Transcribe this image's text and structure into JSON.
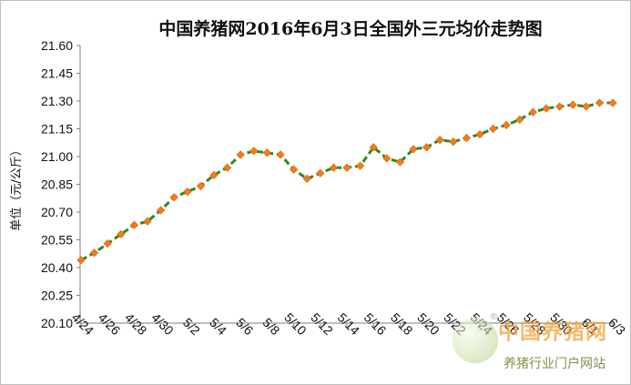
{
  "chart_data": {
    "type": "line",
    "title": "中国养猪网2016年6月3日全国外三元均价走势图",
    "ylabel": "单位（元/公斤）",
    "xlabel": "",
    "ylim": [
      20.1,
      21.6
    ],
    "yticks": [
      "20.10",
      "20.25",
      "20.40",
      "20.55",
      "20.70",
      "20.85",
      "21.00",
      "21.15",
      "21.30",
      "21.45",
      "21.60"
    ],
    "xticks": [
      "4/24",
      "4/26",
      "4/28",
      "4/30",
      "5/2",
      "5/4",
      "5/6",
      "5/8",
      "5/10",
      "5/12",
      "5/14",
      "5/16",
      "5/18",
      "5/20",
      "5/22",
      "5/24",
      "5/26",
      "5/28",
      "5/30",
      "6/1",
      "6/3"
    ],
    "grid": false,
    "legend": "none",
    "line_color": "#2e8b1e",
    "marker_color": "#f07c1e",
    "series": [
      {
        "x": [
          "4/24",
          "4/25",
          "4/26",
          "4/27",
          "4/28",
          "4/29",
          "4/30",
          "5/1",
          "5/2",
          "5/3",
          "5/4",
          "5/5",
          "5/6",
          "5/7",
          "5/8",
          "5/9",
          "5/10",
          "5/11",
          "5/12",
          "5/13",
          "5/14",
          "5/15",
          "5/16",
          "5/17",
          "5/18",
          "5/19",
          "5/20",
          "5/21",
          "5/22",
          "5/23",
          "5/24",
          "5/25",
          "5/26",
          "5/27",
          "5/28",
          "5/29",
          "5/30",
          "5/31",
          "6/1",
          "6/2",
          "6/3"
        ],
        "values": [
          20.44,
          20.48,
          20.53,
          20.58,
          20.63,
          20.65,
          20.71,
          20.78,
          20.81,
          20.84,
          20.9,
          20.94,
          21.01,
          21.03,
          21.02,
          21.01,
          20.93,
          20.88,
          20.91,
          20.94,
          20.94,
          20.95,
          21.05,
          20.99,
          20.97,
          21.04,
          21.05,
          21.09,
          21.08,
          21.1,
          21.12,
          21.15,
          21.17,
          21.2,
          21.24,
          21.26,
          21.27,
          21.28,
          21.27,
          21.29,
          21.29
        ]
      }
    ]
  },
  "watermark": {
    "brand": "中国养猪网",
    "reg_mark": "®",
    "subtitle": "养猪行业门户网站"
  }
}
